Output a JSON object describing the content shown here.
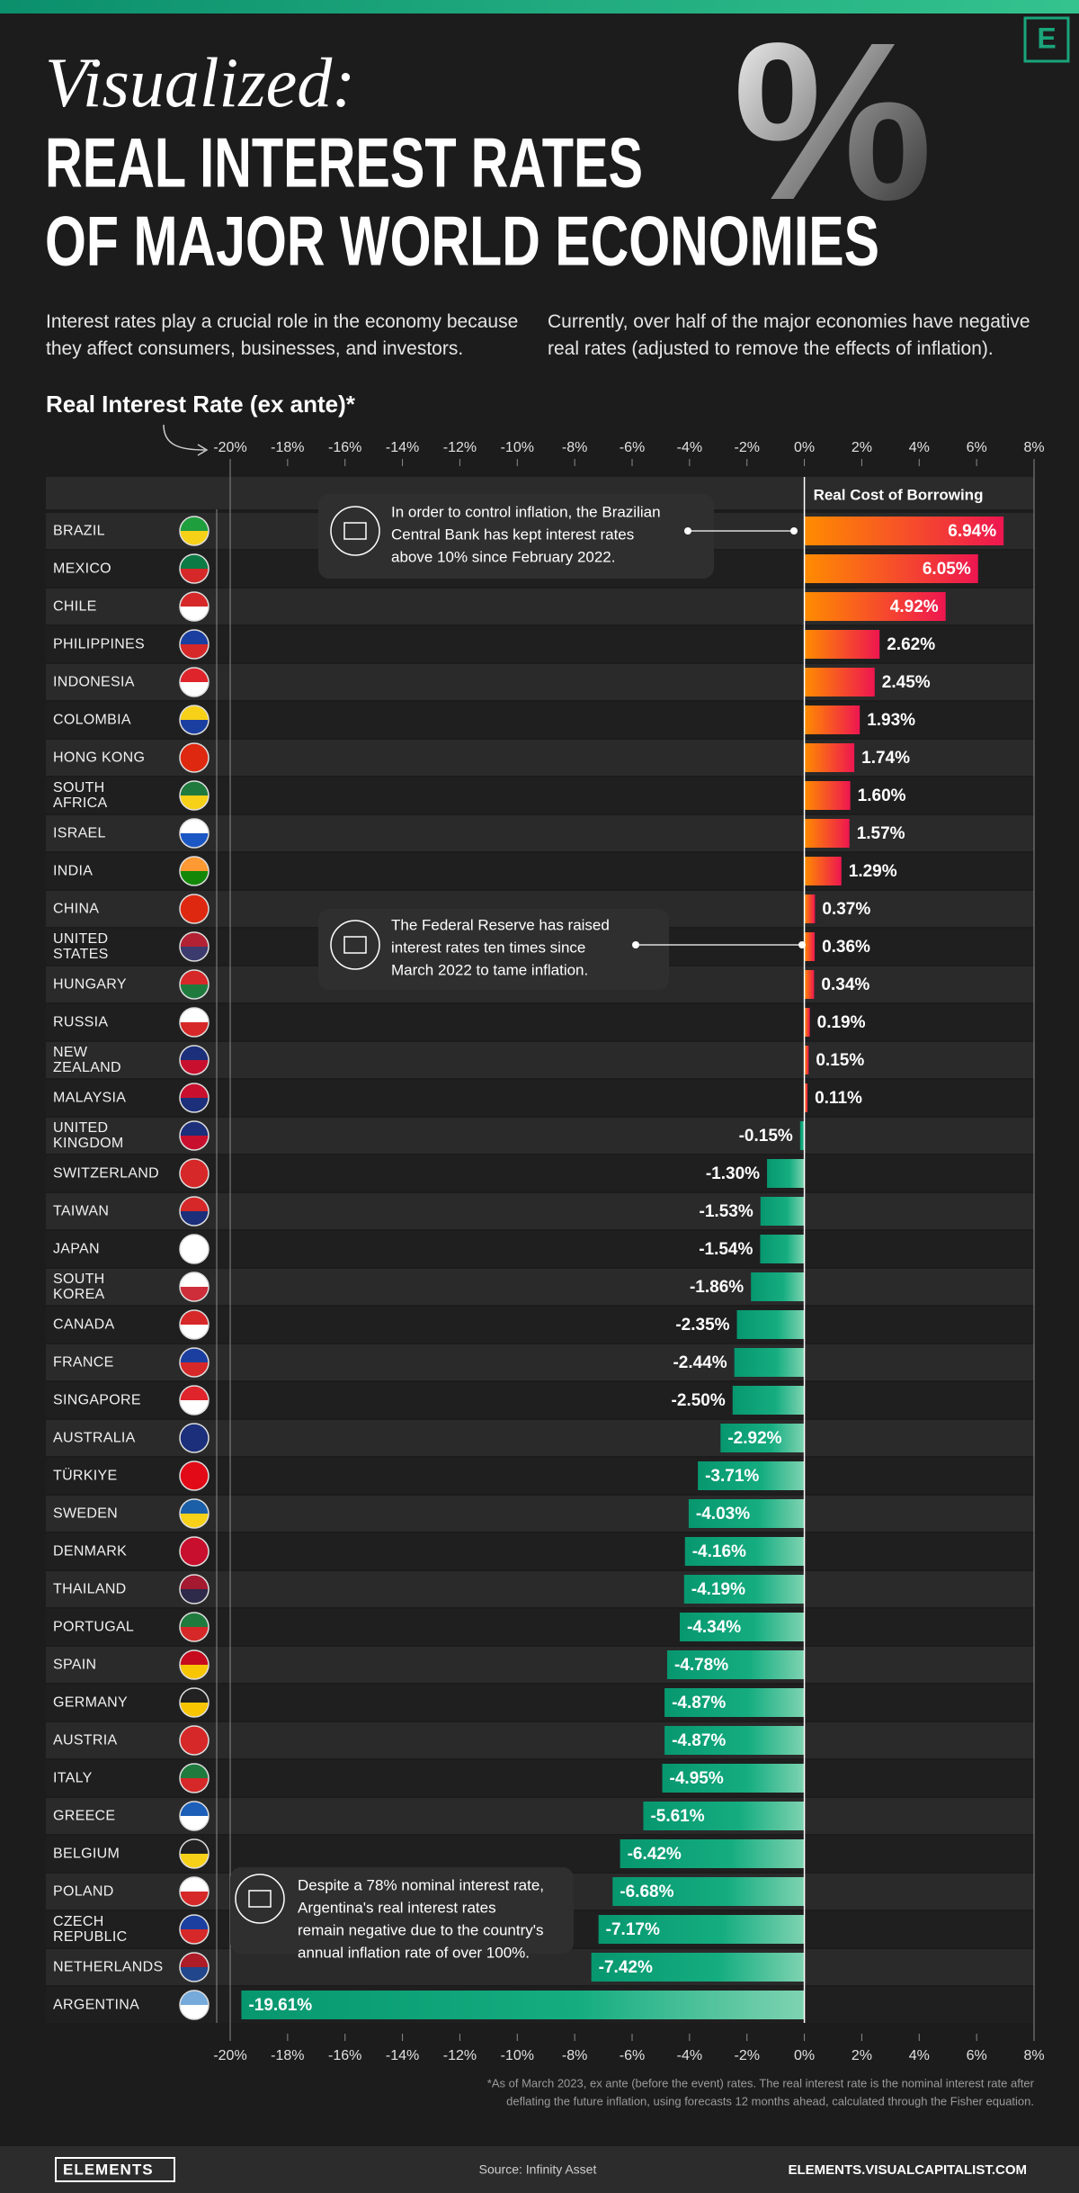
{
  "chart_data": {
    "type": "bar",
    "logo": "E",
    "title_lines": [
      "Visualized:",
      "REAL INTEREST RATES",
      "OF MAJOR WORLD ECONOMIES"
    ],
    "decoration": "%",
    "subtitle": [
      "Interest rates play a crucial role in the economy because they affect consumers, businesses, and investors.",
      "Currently, over half of the major economies have negative real rates (adjusted to remove the effects of inflation)."
    ],
    "x_label": "Real Interest Rate (ex ante)*",
    "header": "Real Cost of Borrowing",
    "categories": [
      "BRAZIL",
      "MEXICO",
      "CHILE",
      "PHILIPPINES",
      "INDONESIA",
      "COLOMBIA",
      "HONG KONG",
      "SOUTH\nAFRICA",
      "ISRAEL",
      "INDIA",
      "CHINA",
      "UNITED\nSTATES",
      "HUNGARY",
      "RUSSIA",
      "NEW\nZEALAND",
      "MALAYSIA",
      "UNITED\nKINGDOM",
      "SWITZERLAND",
      "TAIWAN",
      "JAPAN",
      "SOUTH\nKOREA",
      "CANADA",
      "FRANCE",
      "SINGAPORE",
      "AUSTRALIA",
      "TÜRKIYE",
      "SWEDEN",
      "DENMARK",
      "THAILAND",
      "PORTUGAL",
      "SPAIN",
      "GERMANY",
      "AUSTRIA",
      "ITALY",
      "GREECE",
      "BELGIUM",
      "POLAND",
      "CZECH\nREPUBLIC",
      "NETHERLANDS",
      "ARGENTINA"
    ],
    "values": [
      6.94,
      6.05,
      4.92,
      2.62,
      2.45,
      1.93,
      1.74,
      1.6,
      1.57,
      1.29,
      0.37,
      0.36,
      0.34,
      0.19,
      0.15,
      0.11,
      -0.15,
      -1.3,
      -1.53,
      -1.54,
      -1.86,
      -2.35,
      -2.44,
      -2.5,
      -2.92,
      -3.71,
      -4.03,
      -4.16,
      -4.19,
      -4.34,
      -4.78,
      -4.87,
      -4.87,
      -4.95,
      -5.61,
      -6.42,
      -6.68,
      -7.17,
      -7.42,
      -19.61
    ],
    "value_labels": [
      "6.94%",
      "6.05%",
      "4.92%",
      "2.62%",
      "2.45%",
      "1.93%",
      "1.74%",
      "1.60%",
      "1.57%",
      "1.29%",
      "0.37%",
      "0.36%",
      "0.34%",
      "0.19%",
      "0.15%",
      "0.11%",
      "-0.15%",
      "-1.30%",
      "-1.53%",
      "-1.54%",
      "-1.86%",
      "-2.35%",
      "-2.44%",
      "-2.50%",
      "-2.92%",
      "-3.71%",
      "-4.03%",
      "-4.16%",
      "-4.19%",
      "-4.34%",
      "-4.78%",
      "-4.87%",
      "-4.87%",
      "-4.95%",
      "-5.61%",
      "-6.42%",
      "-6.68%",
      "-7.17%",
      "-7.42%",
      "-19.61%"
    ],
    "xlim": [
      -20,
      8
    ],
    "xticks": [
      {
        "value": -20,
        "label": "-20%"
      },
      {
        "value": -18,
        "label": "-18%"
      },
      {
        "value": -16,
        "label": "-16%"
      },
      {
        "value": -14,
        "label": "-14%"
      },
      {
        "value": -12,
        "label": "-12%"
      },
      {
        "value": -10,
        "label": "-10%"
      },
      {
        "value": -8,
        "label": "-8%"
      },
      {
        "value": -6,
        "label": "-6%"
      },
      {
        "value": -4,
        "label": "-4%"
      },
      {
        "value": -2,
        "label": "-2%"
      },
      {
        "value": 0,
        "label": "0%"
      },
      {
        "value": 2,
        "label": "2%"
      },
      {
        "value": 4,
        "label": "4%"
      },
      {
        "value": 6,
        "label": "6%"
      },
      {
        "value": 8,
        "label": "8%"
      }
    ],
    "annotations": [
      [
        "In order to control inflation, the Brazilian",
        "Central Bank has kept interest rates",
        "above 10% since February 2022."
      ],
      [
        "The Federal Reserve has raised",
        "interest rates ten times since",
        "March 2022 to tame inflation."
      ],
      [
        "Despite a 78% nominal interest rate,",
        "Argentina's real interest rates",
        "remain negative due to the country's",
        "annual inflation rate of over 100%."
      ]
    ],
    "footnote": [
      "*As of March 2023, ex ante (before the event) rates. The real interest rate is the nominal interest rate after",
      "deflating the future inflation, using forecasts 12 months ahead, calculated through the Fisher equation."
    ],
    "brand": "ELEMENTS",
    "source": "Source: Infinity Asset",
    "url": "ELEMENTS.VISUALCAPITALIST.COM"
  }
}
